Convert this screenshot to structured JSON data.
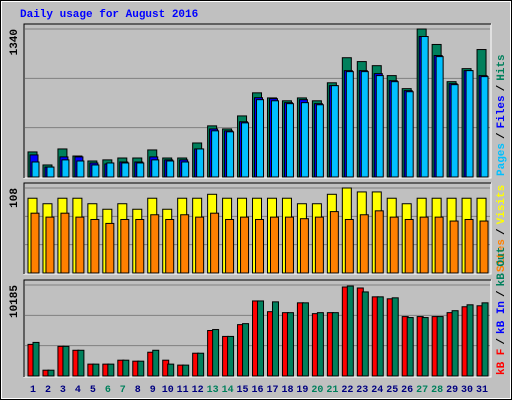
{
  "title": "Daily usage for August 2016",
  "legend_separator": "/",
  "chart_data": [
    {
      "type": "bar",
      "ylim": [
        0,
        1340
      ],
      "yticks": [
        1340
      ],
      "series": [
        {
          "name": "Hits",
          "color": "#00805c",
          "values": [
            227,
            109,
            254,
            190,
            145,
            155,
            172,
            172,
            245,
            172,
            172,
            308,
            463,
            435,
            553,
            762,
            716,
            690,
            716,
            690,
            853,
            1080,
            1045,
            1008,
            918,
            800,
            1340,
            1200,
            863,
            981,
            1154
          ]
        },
        {
          "name": "Files",
          "color": "#0000ff",
          "values": [
            200,
            90,
            182,
            182,
            127,
            118,
            136,
            136,
            182,
            155,
            155,
            254,
            435,
            418,
            500,
            718,
            709,
            673,
            700,
            664,
            827,
            963,
            963,
            936,
            872,
            782,
            1272,
            1100,
            845,
            963,
            918
          ]
        },
        {
          "name": "Pages",
          "color": "#00c0ff",
          "values": [
            136,
            90,
            155,
            145,
            109,
            127,
            127,
            127,
            155,
            145,
            136,
            254,
            418,
            409,
            490,
            700,
            690,
            664,
            673,
            654,
            827,
            954,
            954,
            918,
            863,
            772,
            1272,
            1090,
            836,
            963,
            909
          ]
        }
      ]
    },
    {
      "type": "bar",
      "ylim": [
        0,
        108
      ],
      "yticks": [
        108
      ],
      "series": [
        {
          "name": "Visits",
          "color": "#ffff00",
          "values": [
            95,
            88,
            95,
            95,
            88,
            81,
            88,
            81,
            95,
            81,
            95,
            95,
            100,
            95,
            95,
            95,
            95,
            95,
            88,
            88,
            100,
            108,
            103,
            103,
            95,
            88,
            95,
            95,
            95,
            95,
            95
          ]
        },
        {
          "name": "Sites",
          "color": "#ff8000",
          "values": [
            76,
            71,
            76,
            71,
            68,
            63,
            68,
            68,
            74,
            68,
            74,
            71,
            76,
            68,
            71,
            68,
            71,
            71,
            69,
            71,
            78,
            68,
            74,
            79,
            71,
            68,
            71,
            71,
            66,
            68,
            66
          ]
        }
      ]
    },
    {
      "type": "bar",
      "ylim": [
        0,
        10185
      ],
      "yticks": [
        10185
      ],
      "categories": [
        "1",
        "2",
        "3",
        "4",
        "5",
        "6",
        "7",
        "8",
        "9",
        "10",
        "11",
        "12",
        "13",
        "14",
        "15",
        "16",
        "17",
        "18",
        "19",
        "20",
        "21",
        "22",
        "23",
        "24",
        "25",
        "26",
        "27",
        "28",
        "29",
        "30",
        "31"
      ],
      "category_colors": [
        "#000080",
        "#000080",
        "#000080",
        "#000080",
        "#000080",
        "#00805c",
        "#00805c",
        "#000080",
        "#000080",
        "#000080",
        "#000080",
        "#000080",
        "#00805c",
        "#00805c",
        "#000080",
        "#000080",
        "#000080",
        "#000080",
        "#000080",
        "#00805c",
        "#00805c",
        "#000080",
        "#000080",
        "#000080",
        "#000080",
        "#000080",
        "#00805c",
        "#00805c",
        "#000080",
        "#000080",
        "#000080"
      ],
      "series": [
        {
          "name": "kB F",
          "color": "#ff0000",
          "values": [
            3540,
            650,
            3320,
            2880,
            1330,
            1330,
            1770,
            1660,
            2660,
            1770,
            1220,
            2550,
            5090,
            4430,
            5750,
            8400,
            7200,
            7090,
            8190,
            6980,
            7090,
            9960,
            9850,
            8860,
            8640,
            6650,
            6650,
            6650,
            7090,
            7750,
            7860
          ]
        },
        {
          "name": "kB In",
          "color": "#0000ff",
          "values": [
            0,
            0,
            0,
            0,
            0,
            0,
            0,
            0,
            0,
            0,
            0,
            0,
            0,
            0,
            0,
            0,
            0,
            0,
            0,
            0,
            0,
            0,
            0,
            0,
            0,
            0,
            0,
            0,
            0,
            0,
            0
          ]
        },
        {
          "name": "kB Out",
          "color": "#00805c",
          "values": [
            3760,
            650,
            3320,
            2880,
            1330,
            1330,
            1770,
            1660,
            2880,
            1330,
            1220,
            2550,
            5200,
            4430,
            5860,
            8400,
            8300,
            7090,
            8190,
            7090,
            7090,
            10070,
            9410,
            8860,
            8750,
            6540,
            6540,
            6650,
            7310,
            7970,
            8190
          ]
        }
      ]
    }
  ]
}
